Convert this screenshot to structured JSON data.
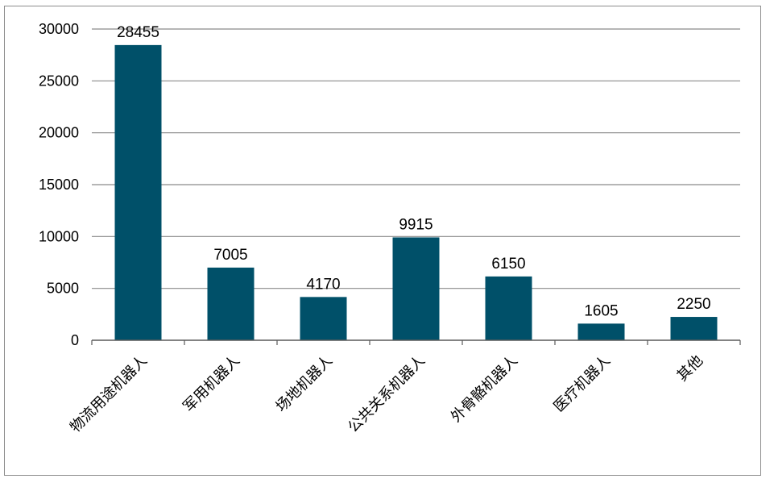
{
  "chart_data": {
    "type": "bar",
    "categories": [
      "物流用途机器人",
      "军用机器人",
      "场地机器人",
      "公共关系机器人",
      "外骨骼机器人",
      "医疗机器人",
      "其他"
    ],
    "values": [
      28455,
      7005,
      4170,
      9915,
      6150,
      1605,
      2250
    ],
    "data_labels": [
      "28455",
      "7005",
      "4170",
      "9915",
      "6150",
      "1605",
      "2250"
    ],
    "ylim": [
      0,
      30000
    ],
    "yticks": [
      0,
      5000,
      10000,
      15000,
      20000,
      25000,
      30000
    ],
    "ytick_labels": [
      "0",
      "5000",
      "10000",
      "15000",
      "20000",
      "25000",
      "30000"
    ],
    "grid": true,
    "bar_color": "#005069",
    "title": "",
    "xlabel": "",
    "ylabel": ""
  }
}
